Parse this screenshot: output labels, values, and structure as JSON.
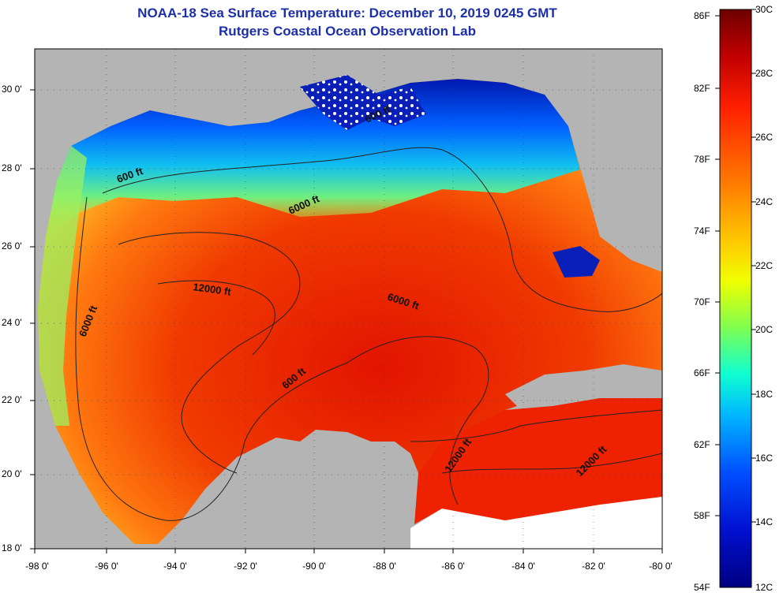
{
  "title": {
    "line1": "NOAA-18 Sea Surface Temperature:  December 10, 2019 0245 GMT",
    "line2": "Rutgers Coastal Ocean Observation Lab"
  },
  "map": {
    "lat_ticks": [
      "30 0'",
      "28 0'",
      "26 0'",
      "24 0'",
      "22 0'",
      "20 0'",
      "18 0'"
    ],
    "lon_ticks": [
      "-98 0'",
      "-96 0'",
      "-94 0'",
      "-92 0'",
      "-90 0'",
      "-88 0'",
      "-86 0'",
      "-84 0'",
      "-82 0'",
      "-80 0'"
    ],
    "contour_labels": [
      {
        "text": "600 ft"
      },
      {
        "text": "600 ft"
      },
      {
        "text": "6000 ft"
      },
      {
        "text": "12000 ft"
      },
      {
        "text": "6000 ft"
      },
      {
        "text": "6000 ft"
      },
      {
        "text": "600 ft"
      },
      {
        "text": "12000 ft"
      },
      {
        "text": "12000 ft"
      }
    ],
    "colors": {
      "land": "#b4b4b4",
      "cloud": "#ffffff"
    }
  },
  "colorbar": {
    "fahrenheit": [
      "86F",
      "82F",
      "78F",
      "74F",
      "70F",
      "66F",
      "62F",
      "58F",
      "54F"
    ],
    "celsius": [
      "30C",
      "28C",
      "26C",
      "24C",
      "22C",
      "20C",
      "18C",
      "16C",
      "14C",
      "12C"
    ],
    "colors": [
      "#800000",
      "#e60000",
      "#ff6600",
      "#ffcc00",
      "#ccff00",
      "#33ffcc",
      "#00ccff",
      "#0066ff",
      "#0000cc",
      "#00007a"
    ]
  }
}
